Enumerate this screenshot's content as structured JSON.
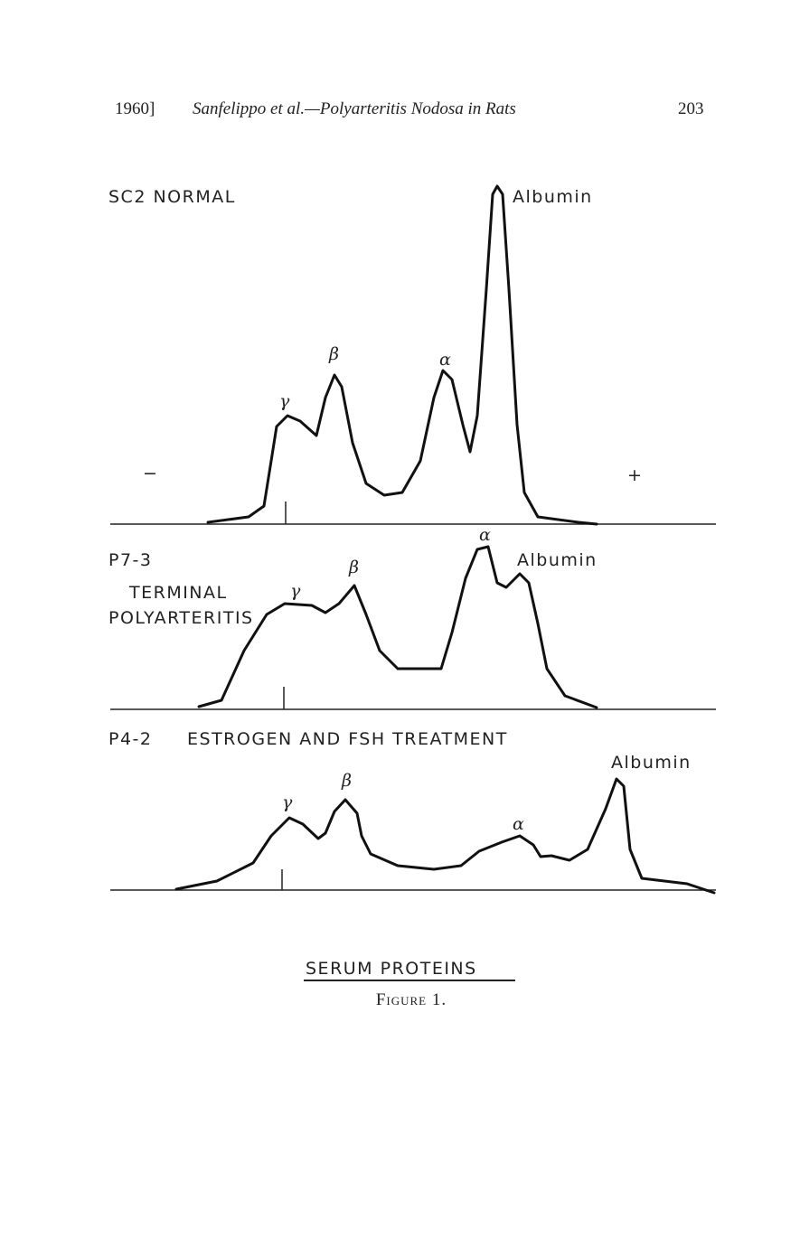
{
  "header": {
    "year": "1960]",
    "running_title": "Sanfelippo et al.—Polyarteritis Nodosa in Rats",
    "page_number": "203"
  },
  "figure": {
    "panels": [
      {
        "label": "SC2 NORMAL",
        "gamma": "γ",
        "beta": "β",
        "alpha": "α",
        "albumin": "Albumin",
        "minus": "−",
        "plus": "+"
      },
      {
        "label": "P7-3",
        "sublabel_1": "TERMINAL",
        "sublabel_2": "POLYARTERITIS",
        "gamma": "γ",
        "beta": "β",
        "alpha": "α",
        "albumin": "Albumin"
      },
      {
        "label": "P4-2",
        "treatment": "ESTROGEN AND FSH TREATMENT",
        "gamma": "γ",
        "beta": "β",
        "alpha": "α",
        "albumin": "Albumin"
      }
    ],
    "title": "SERUM PROTEINS",
    "caption": "Figure 1."
  }
}
